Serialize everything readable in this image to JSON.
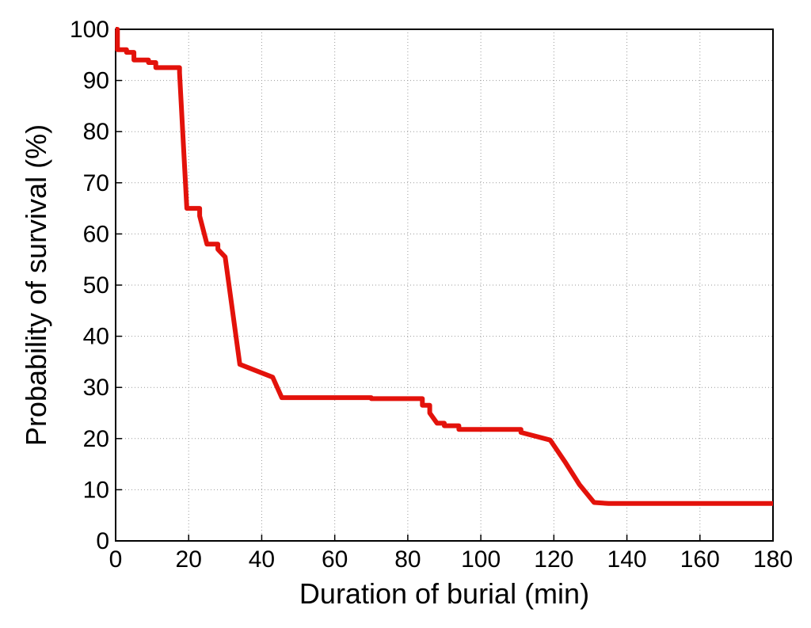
{
  "chart_data": {
    "type": "line",
    "title": "",
    "xlabel": "Duration of burial (min)",
    "ylabel": "Probability of survival (%)",
    "xlim": [
      0,
      180
    ],
    "ylim": [
      0,
      100
    ],
    "x_ticks": [
      "0",
      "20",
      "40",
      "60",
      "80",
      "100",
      "120",
      "140",
      "160",
      "180"
    ],
    "y_ticks": [
      "0",
      "10",
      "20",
      "30",
      "40",
      "50",
      "60",
      "70",
      "80",
      "90",
      "100"
    ],
    "grid": true,
    "grid_style": "dotted",
    "line_color": "#e3120b",
    "series": [
      {
        "x": [
          0,
          0.5,
          0.5,
          3,
          3,
          5,
          5,
          9,
          9,
          11,
          11,
          17.5,
          17.5,
          19.5,
          19.5,
          23,
          23,
          25,
          25,
          28,
          28,
          30,
          30,
          34,
          34,
          43,
          43,
          45.5,
          45.5,
          70,
          70,
          84,
          84,
          86,
          86,
          88,
          88,
          90,
          90,
          94,
          94,
          95,
          95,
          111,
          111,
          119,
          119,
          123,
          123,
          127,
          127,
          131,
          131,
          135,
          135,
          180
        ],
        "y": [
          100,
          100,
          96,
          96,
          95.5,
          95.5,
          94,
          94,
          93.5,
          93.5,
          92.5,
          92.5,
          91.5,
          65,
          65,
          65,
          63.5,
          58,
          58,
          58,
          57,
          55.5,
          55.5,
          34.5,
          34.5,
          32,
          32,
          28,
          28,
          28,
          27.8,
          27.8,
          26.5,
          26.5,
          25,
          23,
          23,
          23,
          22.5,
          22.5,
          21.8,
          21.8,
          21.8,
          21.8,
          21.2,
          19.7,
          19.7,
          15.5,
          15.5,
          11,
          11,
          7.5,
          7.5,
          7.3,
          7.3,
          7.3
        ]
      }
    ]
  }
}
